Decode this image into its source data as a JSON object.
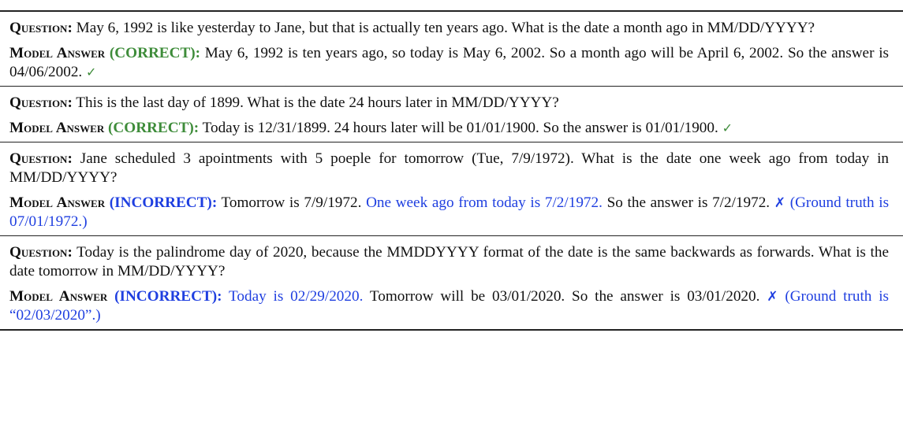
{
  "labels": {
    "question": "Question:",
    "model_answer": "Model Answer",
    "correct": "(CORRECT):",
    "incorrect": "(INCORRECT):",
    "check_mark": "✓",
    "cross_mark": "✗"
  },
  "entries": [
    {
      "question": "May 6, 1992 is like yesterday to Jane, but that is actually ten years ago. What is the date a month ago in MM/DD/YYYY?",
      "answer": "May 6, 1992 is ten years ago, so today is May 6, 2002. So a month ago will be April 6, 2002. So the answer is 04/06/2002."
    },
    {
      "question": "This is the last day of 1899. What is the date 24 hours later in MM/DD/YYYY?",
      "answer": "Today is 12/31/1899. 24 hours later will be 01/01/1900. So the answer is 01/01/1900."
    },
    {
      "question": "Jane scheduled 3 apointments with 5 poeple for tomorrow (Tue, 7/9/1972). What is the date one week ago from today in MM/DD/YYYY?",
      "answer_pre": "Tomorrow is 7/9/1972.",
      "answer_highlight": "One week ago from today is 7/2/1972.",
      "answer_post": "So the answer is 7/2/1972.",
      "ground_truth": "(Ground truth is 07/01/1972.)"
    },
    {
      "question": "Today is the palindrome day of 2020, because the MMDDYYYY format of the date is the same backwards as forwards. What is the date tomorrow in MM/DD/YYYY?",
      "answer_highlight": "Today is 02/29/2020.",
      "answer_post": "Tomorrow will be 03/01/2020. So the answer is 03/01/2020.",
      "ground_truth": "(Ground truth is “02/03/2020”.)"
    }
  ]
}
